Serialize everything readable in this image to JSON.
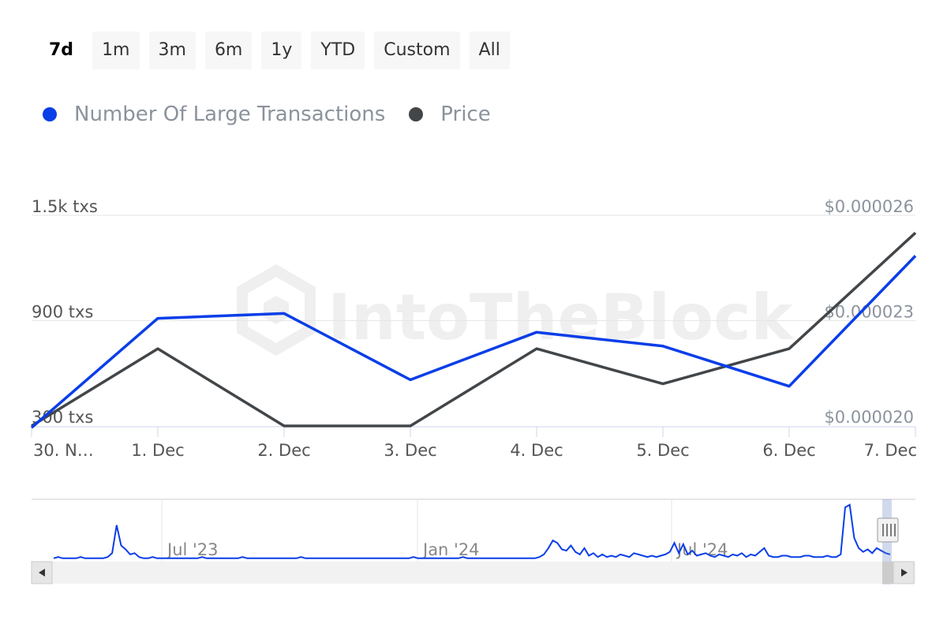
{
  "range_selector": {
    "buttons": [
      "7d",
      "1m",
      "3m",
      "6m",
      "1y",
      "YTD",
      "Custom",
      "All"
    ],
    "active": "7d"
  },
  "colors": {
    "transactions": "#0a3ee8",
    "price": "#424649",
    "grid": "#e6e6e6",
    "axis_text": "#555555",
    "legend_text": "#8b939c"
  },
  "watermark": "IntoTheBlock",
  "chart_data": {
    "type": "line",
    "categories": [
      "30. N…",
      "1. Dec",
      "2. Dec",
      "3. Dec",
      "4. Dec",
      "5. Dec",
      "6. Dec",
      "7. Dec"
    ],
    "series": [
      {
        "name": "Number Of Large Transactions",
        "axis": "left",
        "values": [
          290,
          913,
          941,
          563,
          834,
          755,
          526,
          1269
        ]
      },
      {
        "name": "Price",
        "axis": "right",
        "values": [
          2e-05,
          2.22e-05,
          2e-05,
          2e-05,
          2.22e-05,
          2.12e-05,
          2.22e-05,
          2.55e-05
        ]
      }
    ],
    "y_left": {
      "min": 300,
      "max": 1500,
      "ticks": [
        300,
        900,
        1500
      ],
      "tick_labels": [
        "300 txs",
        "900 txs",
        "1.5k txs"
      ]
    },
    "y_right": {
      "min": 2e-05,
      "max": 2.6e-05,
      "ticks": [
        2e-05,
        2.3e-05,
        2.6e-05
      ],
      "tick_labels": [
        "$0.000020",
        "$0.000023",
        "$0.000026"
      ]
    },
    "grid": true,
    "legend_position": "top-left"
  },
  "navigator": {
    "labels": [
      "Jul '23",
      "Jan '24",
      "Jul '24"
    ],
    "series_values": [
      2,
      3,
      2,
      2,
      2,
      2,
      3,
      2,
      2,
      2,
      2,
      2,
      3,
      6,
      28,
      12,
      9,
      5,
      6,
      3,
      2,
      2,
      3,
      2,
      2,
      2,
      2,
      2,
      2,
      2,
      2,
      2,
      2,
      3,
      2,
      2,
      2,
      2,
      2,
      2,
      2,
      2,
      3,
      2,
      2,
      2,
      2,
      2,
      2,
      2,
      2,
      2,
      2,
      2,
      2,
      3,
      2,
      2,
      2,
      2,
      2,
      2,
      2,
      2,
      2,
      2,
      2,
      2,
      2,
      2,
      2,
      2,
      2,
      2,
      2,
      2,
      2,
      2,
      2,
      2,
      3,
      2,
      2,
      2,
      2,
      2,
      2,
      2,
      2,
      2,
      2,
      3,
      2,
      2,
      2,
      2,
      2,
      2,
      2,
      2,
      2,
      2,
      2,
      2,
      2,
      2,
      2,
      2,
      3,
      5,
      10,
      16,
      14,
      9,
      8,
      12,
      7,
      5,
      10,
      4,
      6,
      3,
      5,
      3,
      4,
      3,
      5,
      4,
      3,
      6,
      5,
      4,
      3,
      4,
      3,
      4,
      5,
      7,
      14,
      6,
      13,
      5,
      8,
      4,
      5,
      6,
      4,
      3,
      5,
      4,
      3,
      5,
      4,
      6,
      3,
      5,
      4,
      7,
      10,
      4,
      3,
      3,
      4,
      4,
      3,
      3,
      3,
      4,
      4,
      3,
      3,
      3,
      4,
      3,
      3,
      5,
      42,
      44,
      18,
      10,
      7,
      9,
      6,
      10,
      8,
      6,
      5
    ],
    "left_arrow": "◀",
    "right_arrow": "▶"
  }
}
